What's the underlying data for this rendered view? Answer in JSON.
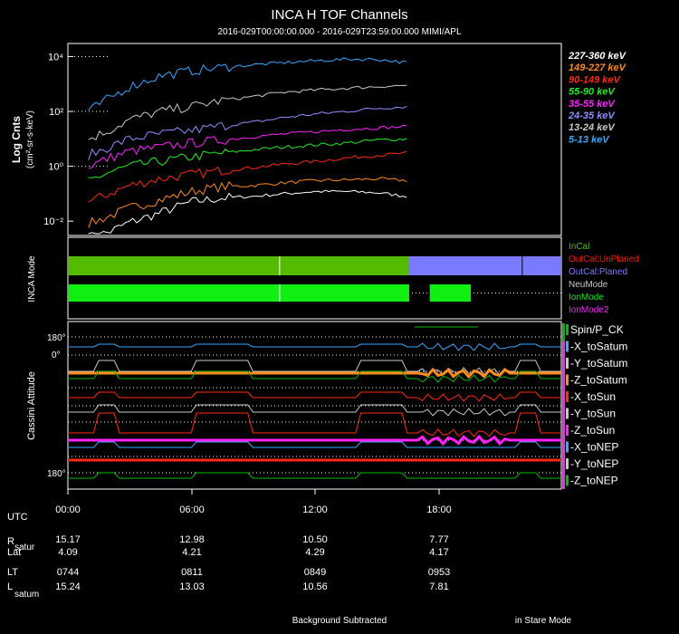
{
  "header": {
    "title": "INCA H TOF Channels",
    "subtitle": "2016-029T00:00:00.000 - 2016-029T23:59:00.000 MIMI/APL"
  },
  "chart_data": [
    {
      "type": "line",
      "panel": "tof",
      "ylabel": "Log Cnts",
      "yunits": "(cm²-sr-s-keV)",
      "yscale": "log",
      "ylim": [
        0.003,
        30000
      ],
      "yticks": [
        {
          "value": 10000,
          "label": "10⁴"
        },
        {
          "value": 100,
          "label": "10²"
        },
        {
          "value": 1,
          "label": "10⁰"
        },
        {
          "value": 0.01,
          "label": "10⁻²"
        }
      ],
      "x_hours": [
        1.0,
        2.0,
        3.0,
        4.5,
        6.0,
        7.5,
        9.0,
        10.5,
        12.0,
        13.5,
        15.0,
        16.5
      ],
      "series": [
        {
          "name": "227-360 keV",
          "color": "#ffffff",
          "values": [
            0.0025,
            0.004,
            0.009,
            0.02,
            0.05,
            0.07,
            0.08,
            0.1,
            0.12,
            0.12,
            0.11,
            0.08
          ]
        },
        {
          "name": "149-227 keV",
          "color": "#ff8a1e",
          "values": [
            0.008,
            0.015,
            0.03,
            0.06,
            0.12,
            0.18,
            0.2,
            0.25,
            0.3,
            0.32,
            0.35,
            0.3
          ]
        },
        {
          "name": "90-149 keV",
          "color": "#ff2a10",
          "values": [
            0.05,
            0.1,
            0.2,
            0.35,
            0.5,
            0.7,
            0.9,
            1.2,
            1.5,
            2.0,
            2.5,
            3.0
          ]
        },
        {
          "name": "55-90 keV",
          "color": "#22ee22",
          "values": [
            0.3,
            0.6,
            1.0,
            1.5,
            2.2,
            3.0,
            4.0,
            5.0,
            6.0,
            7.0,
            9.0,
            10.0
          ]
        },
        {
          "name": "35-55 keV",
          "color": "#ff22ff",
          "values": [
            1.0,
            2.0,
            3.5,
            5.0,
            7.0,
            9.0,
            12.0,
            15.0,
            18.0,
            22.0,
            25.0,
            28.0
          ]
        },
        {
          "name": "24-35 keV",
          "color": "#8f8fff",
          "values": [
            2.5,
            5.0,
            10.0,
            15.0,
            20.0,
            30.0,
            40.0,
            60.0,
            80.0,
            100.0,
            130.0,
            150.0
          ]
        },
        {
          "name": "13-24 keV",
          "color": "#c8c8c8",
          "values": [
            10.0,
            20.0,
            50.0,
            100.0,
            150.0,
            250.0,
            350.0,
            500.0,
            600.0,
            700.0,
            800.0,
            900.0
          ]
        },
        {
          "name": "5-13 keV",
          "color": "#39a8ff",
          "values": [
            100.0,
            300.0,
            800.0,
            2000.0,
            3000.0,
            4000.0,
            5000.0,
            6000.0,
            7000.0,
            8000.0,
            8000.0,
            6000.0
          ]
        }
      ]
    },
    {
      "type": "timeline",
      "panel": "inca-mode",
      "ylabel": "INCA Mode",
      "legend": [
        {
          "name": "InCal",
          "color": "#55bb00"
        },
        {
          "name": "OutCal:UnPlaned",
          "color": "#ff1a00"
        },
        {
          "name": "OutCal:Planed",
          "color": "#7a7aff"
        },
        {
          "name": "NeuMode",
          "color": "#c8c8c8"
        },
        {
          "name": "IonMode",
          "color": "#11ee11"
        },
        {
          "name": "IonMode2",
          "color": "#ff22ff"
        }
      ],
      "tracks": [
        {
          "segments": [
            {
              "start": 0.0,
              "end": 16.6,
              "mode": "InCal"
            },
            {
              "start": 16.6,
              "end": 24.0,
              "mode": "OutCal:Planed"
            }
          ]
        },
        {
          "segments": [
            {
              "start": 0.0,
              "end": 16.6,
              "mode": "IonMode"
            },
            {
              "start": 17.6,
              "end": 19.6,
              "mode": "IonMode"
            }
          ]
        }
      ]
    },
    {
      "type": "line",
      "panel": "cassini-attitude",
      "ylabel": "Cassini Attitude",
      "yticks": [
        {
          "label": "180°"
        },
        {
          "label": "0°"
        },
        {
          "label": "180°"
        }
      ],
      "legend": [
        {
          "name": "Spin/P_CK",
          "color": "#00bb00"
        },
        {
          "name": "-X_toSatum",
          "color": "#39a8ff"
        },
        {
          "name": "-Y_toSatum",
          "color": "#c8c8c8"
        },
        {
          "name": "-Z_toSatum",
          "color": "#ff8a1e"
        },
        {
          "name": "-X_toSun",
          "color": "#ff2a10"
        },
        {
          "name": "-Y_toSun",
          "color": "#c8c8c8"
        },
        {
          "name": "-Z_toSun",
          "color": "#ff22ff"
        },
        {
          "name": "-X_toNEP",
          "color": "#39a8ff"
        },
        {
          "name": "-Y_toNEP",
          "color": "#c8c8c8"
        },
        {
          "name": "-Z_toNEP",
          "color": "#00bb00"
        }
      ]
    }
  ],
  "ephemeris": {
    "utc_label": "UTC",
    "time_labels": [
      "00:00",
      "06:00",
      "12:00",
      "18:00"
    ],
    "rows": [
      {
        "label": "R",
        "sub": "satur",
        "values": [
          "15.17",
          "12.98",
          "10.50",
          "7.77"
        ]
      },
      {
        "label": "Lat",
        "sub": "",
        "values": [
          "4.09",
          "4.21",
          "4.29",
          "4.17"
        ]
      },
      {
        "label": "LT",
        "sub": "",
        "values": [
          "0744",
          "0811",
          "0849",
          "0953"
        ]
      },
      {
        "label": "L",
        "sub": "satum",
        "values": [
          "15.24",
          "13.03",
          "10.56",
          "7.81"
        ]
      }
    ]
  },
  "footer": {
    "left": "Background Subtracted",
    "right": "in Stare Mode"
  }
}
